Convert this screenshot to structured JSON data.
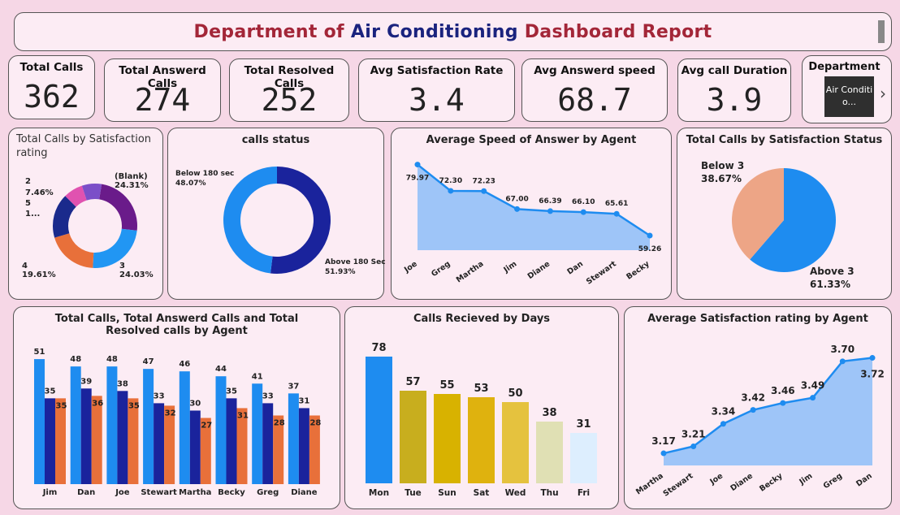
{
  "header": {
    "title_part1": "Department of",
    "title_part2": "Air Conditioning",
    "title_part3": "Dashboard Report",
    "color_primary": "#a32638",
    "color_accent": "#1a237e"
  },
  "kpis": [
    {
      "label": "Total Calls",
      "value": "362"
    },
    {
      "label": "Total Answerd Calls",
      "value": "274"
    },
    {
      "label": "Total Resolved Calls",
      "value": "252"
    },
    {
      "label": "Avg Satisfaction Rate",
      "value": "3.4"
    },
    {
      "label": "Avg Answerd speed",
      "value": "68.7"
    },
    {
      "label": "Avg call Duration",
      "value": "3.9"
    }
  ],
  "slicer": {
    "label": "Department",
    "selected": "Air Conditio...",
    "next_icon": "chevron-right-icon"
  },
  "chart_data": [
    {
      "id": "satisfaction-rating",
      "type": "pie",
      "donut": true,
      "title": "Total Calls by Satisfaction rating",
      "slices": [
        {
          "label": "(Blank)",
          "pct_label": "24.31%",
          "value": 24.31,
          "color": "#6a1b8a"
        },
        {
          "label": "3",
          "pct_label": "24.03%",
          "value": 24.03,
          "color": "#2196f3"
        },
        {
          "label": "4",
          "pct_label": "19.61%",
          "value": 19.61,
          "color": "#e8703a"
        },
        {
          "label": "5",
          "pct_label": "1...",
          "value": 17.06,
          "color": "#1a2a8c"
        },
        {
          "label": "2",
          "pct_label": "7.46%",
          "value": 7.46,
          "color": "#e052b0"
        },
        {
          "label": "",
          "pct_label": "",
          "value": 7.53,
          "color": "#7b4fc8"
        }
      ]
    },
    {
      "id": "calls-status",
      "type": "pie",
      "donut": true,
      "title": "calls status",
      "slices": [
        {
          "label": "Above 180 Sec",
          "pct_label": "51.93%",
          "value": 51.93,
          "color": "#1a239c"
        },
        {
          "label": "Below 180 sec",
          "pct_label": "48.07%",
          "value": 48.07,
          "color": "#1e8cf0"
        }
      ]
    },
    {
      "id": "speed-by-agent",
      "type": "area",
      "title": "Average Speed of Answer by Agent",
      "categories": [
        "Joe",
        "Greg",
        "Martha",
        "Jim",
        "Diane",
        "Dan",
        "Stewart",
        "Becky"
      ],
      "values": [
        79.97,
        72.3,
        72.23,
        67.0,
        66.39,
        66.1,
        65.61,
        59.26
      ],
      "labels": [
        "79.97",
        "72.30",
        "72.23",
        "67.00",
        "66.39",
        "66.10",
        "65.61",
        "59.26"
      ],
      "ylim": [
        55,
        82
      ]
    },
    {
      "id": "satisfaction-status",
      "type": "pie",
      "donut": false,
      "title": "Total Calls by Satisfaction Status",
      "slices": [
        {
          "label": "Above 3",
          "pct_label": "61.33%",
          "value": 61.33,
          "color": "#1e8cf0"
        },
        {
          "label": "Below 3",
          "pct_label": "38.67%",
          "value": 38.67,
          "color": "#eda586"
        }
      ]
    },
    {
      "id": "calls-by-agent",
      "type": "bar",
      "title": "Total Calls, Total Answerd Calls and Total Resolved calls by Agent",
      "categories": [
        "Jim",
        "Dan",
        "Joe",
        "Stewart",
        "Martha",
        "Becky",
        "Greg",
        "Diane"
      ],
      "series": [
        {
          "values": [
            51,
            48,
            48,
            47,
            46,
            44,
            41,
            37
          ],
          "color": "#1e8cf0"
        },
        {
          "values": [
            35,
            39,
            38,
            33,
            30,
            35,
            33,
            31
          ],
          "color": "#1a239c"
        },
        {
          "values": [
            35,
            36,
            35,
            32,
            27,
            31,
            28,
            28
          ],
          "color": "#e8703a"
        }
      ],
      "ylim": [
        0,
        55
      ]
    },
    {
      "id": "calls-by-day",
      "type": "bar",
      "title": "Calls Recieved by Days",
      "categories": [
        "Mon",
        "Tue",
        "Sun",
        "Sat",
        "Wed",
        "Thu",
        "Fri"
      ],
      "values": [
        78,
        57,
        55,
        53,
        50,
        38,
        31
      ],
      "colors": [
        "#1e8cf0",
        "#c8ae1e",
        "#d8b200",
        "#dfb20e",
        "#e5c23e",
        "#e0e0b4",
        "#ddeefe"
      ],
      "ylim": [
        0,
        85
      ]
    },
    {
      "id": "satisfaction-by-agent",
      "type": "area",
      "title": "Average Satisfaction rating by Agent",
      "categories": [
        "Martha",
        "Stewart",
        "Joe",
        "Diane",
        "Becky",
        "Jim",
        "Greg",
        "Dan"
      ],
      "values": [
        3.17,
        3.21,
        3.34,
        3.42,
        3.46,
        3.49,
        3.7,
        3.72
      ],
      "labels": [
        "3.17",
        "3.21",
        "3.34",
        "3.42",
        "3.46",
        "3.49",
        "3.70",
        "3.72"
      ],
      "ylim": [
        3.1,
        3.76
      ]
    }
  ]
}
